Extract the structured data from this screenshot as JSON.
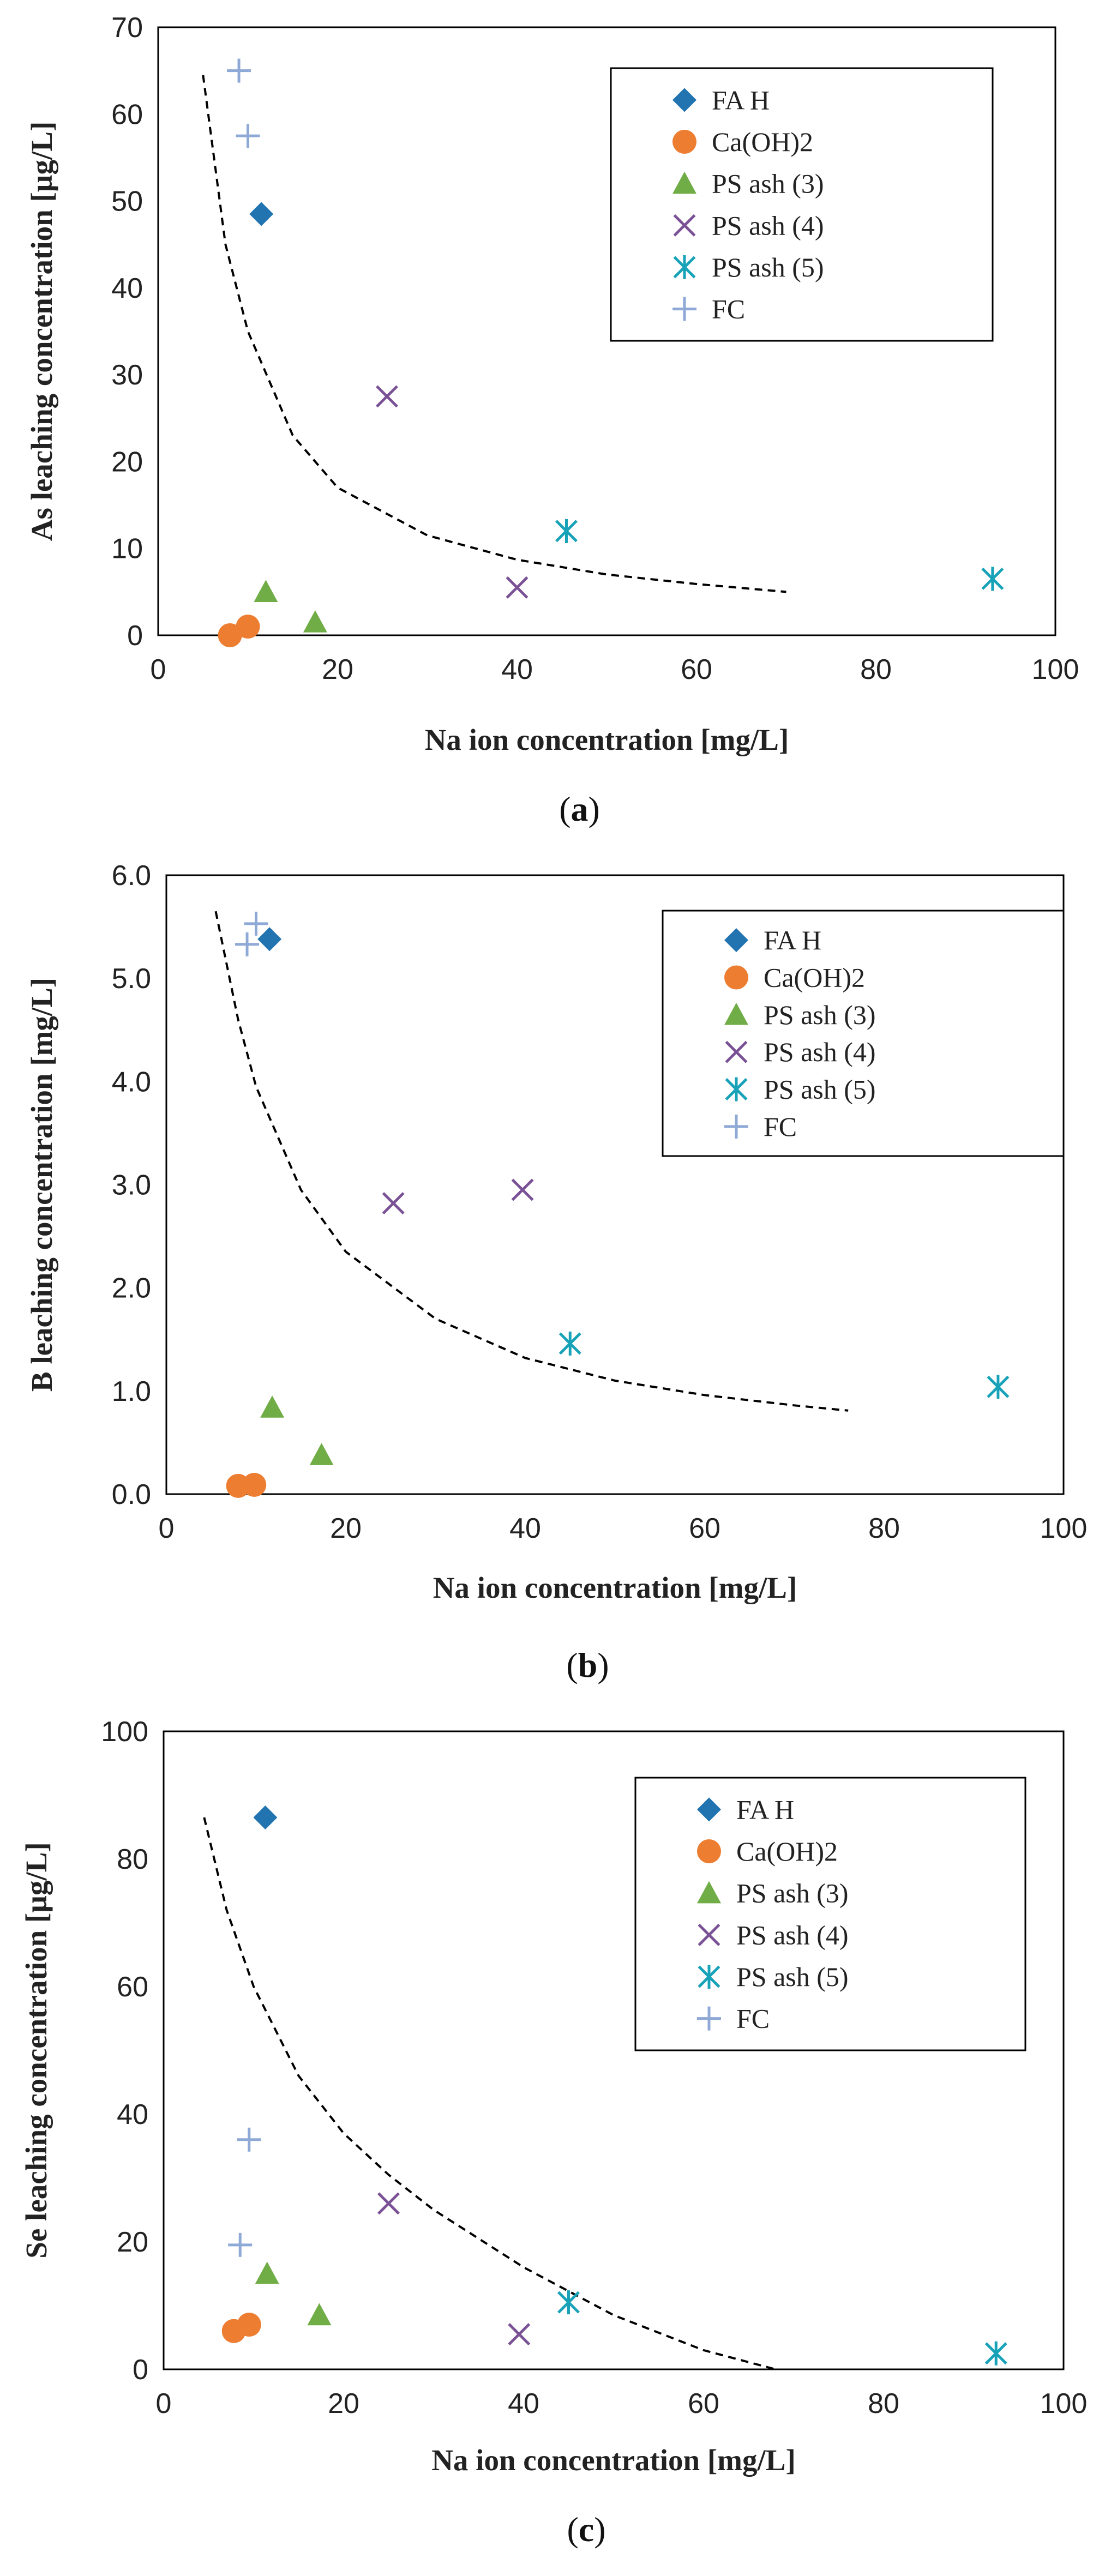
{
  "series_styles": [
    {
      "name": "FA H",
      "marker": "diamond",
      "color": "#2274b0"
    },
    {
      "name": "Ca(OH)2",
      "marker": "circle",
      "color": "#ed7d31"
    },
    {
      "name": "PS ash (3)",
      "marker": "triangle",
      "color": "#70ad47"
    },
    {
      "name": "PS ash (4)",
      "marker": "x",
      "color": "#7a5195"
    },
    {
      "name": "PS ash (5)",
      "marker": "asterisk",
      "color": "#17a2b8"
    },
    {
      "name": "FC",
      "marker": "plus",
      "color": "#8fa9d6"
    }
  ],
  "chart_data": [
    {
      "type": "scatter",
      "caption_open": "(",
      "caption_letter": "a",
      "caption_close": ")",
      "xlabel": "Na ion concentration  [mg/L]",
      "ylabel": "As leaching concentration  [µg/L]",
      "xlim": [
        0,
        100
      ],
      "ylim": [
        0,
        70
      ],
      "xticks": [
        0,
        20,
        40,
        60,
        80,
        100
      ],
      "yticks": [
        0,
        10,
        20,
        30,
        40,
        50,
        60,
        70
      ],
      "ytick_labels": [
        "0",
        "10",
        "20",
        "30",
        "40",
        "50",
        "60",
        "70"
      ],
      "legend_position": "top-right",
      "series": [
        {
          "name": "FA H",
          "points": [
            [
              11.5,
              48.5
            ]
          ]
        },
        {
          "name": "Ca(OH)2",
          "points": [
            [
              8,
              0
            ],
            [
              10,
              1
            ]
          ]
        },
        {
          "name": "PS ash (3)",
          "points": [
            [
              12,
              5
            ],
            [
              17.5,
              1.5
            ]
          ]
        },
        {
          "name": "PS ash (4)",
          "points": [
            [
              25.5,
              27.5
            ],
            [
              40,
              5.5
            ]
          ]
        },
        {
          "name": "PS ash (5)",
          "points": [
            [
              45.5,
              12
            ],
            [
              93,
              6.5
            ]
          ]
        },
        {
          "name": "FC",
          "points": [
            [
              9,
              65
            ],
            [
              10,
              57.5
            ]
          ]
        }
      ],
      "trend": {
        "style": "dashed",
        "points": [
          [
            5,
            64.5
          ],
          [
            7.5,
            45
          ],
          [
            10,
            35
          ],
          [
            15,
            23
          ],
          [
            20,
            17
          ],
          [
            30,
            11.5
          ],
          [
            40,
            8.7
          ],
          [
            50,
            7
          ],
          [
            60,
            5.9
          ],
          [
            70,
            5
          ]
        ]
      }
    },
    {
      "type": "scatter",
      "caption_open": "(",
      "caption_letter": "b",
      "caption_close": ")",
      "xlabel": "Na ion concentration  [mg/L]",
      "ylabel": "B leaching concentration  [mg/L]",
      "xlim": [
        0,
        100
      ],
      "ylim": [
        0,
        6
      ],
      "xticks": [
        0,
        20,
        40,
        60,
        80,
        100
      ],
      "yticks": [
        0,
        1,
        2,
        3,
        4,
        5,
        6
      ],
      "ytick_labels": [
        "0.0",
        "1.0",
        "2.0",
        "3.0",
        "4.0",
        "5.0",
        "6.0"
      ],
      "legend_position": "top-right",
      "series": [
        {
          "name": "FA H",
          "points": [
            [
              11.5,
              5.38
            ]
          ]
        },
        {
          "name": "Ca(OH)2",
          "points": [
            [
              8,
              0.08
            ],
            [
              9.8,
              0.09
            ]
          ]
        },
        {
          "name": "PS ash (3)",
          "points": [
            [
              11.8,
              0.84
            ],
            [
              17.3,
              0.38
            ]
          ]
        },
        {
          "name": "PS ash (4)",
          "points": [
            [
              25.3,
              2.82
            ],
            [
              39.7,
              2.95
            ]
          ]
        },
        {
          "name": "PS ash (5)",
          "points": [
            [
              45,
              1.46
            ],
            [
              92.7,
              1.04
            ]
          ]
        },
        {
          "name": "FC",
          "points": [
            [
              10,
              5.53
            ],
            [
              9,
              5.33
            ]
          ]
        }
      ],
      "trend": {
        "style": "dashed",
        "points": [
          [
            5.5,
            5.65
          ],
          [
            8,
            4.6
          ],
          [
            10,
            3.95
          ],
          [
            15,
            2.95
          ],
          [
            20,
            2.35
          ],
          [
            30,
            1.7
          ],
          [
            40,
            1.32
          ],
          [
            50,
            1.1
          ],
          [
            60,
            0.96
          ],
          [
            70,
            0.86
          ],
          [
            76,
            0.81
          ]
        ]
      }
    },
    {
      "type": "scatter",
      "caption_open": "(",
      "caption_letter": "c",
      "caption_close": ")",
      "xlabel": "Na ion concentration  [mg/L]",
      "ylabel": "Se leaching concentration  [µg/L]",
      "xlim": [
        0,
        100
      ],
      "ylim": [
        0,
        100
      ],
      "xticks": [
        0,
        20,
        40,
        60,
        80,
        100
      ],
      "yticks": [
        0,
        20,
        40,
        60,
        80,
        100
      ],
      "ytick_labels": [
        "0",
        "20",
        "40",
        "60",
        "80",
        "100"
      ],
      "legend_position": "top-right",
      "series": [
        {
          "name": "FA H",
          "points": [
            [
              11.3,
              86.5
            ]
          ]
        },
        {
          "name": "Ca(OH)2",
          "points": [
            [
              7.8,
              6
            ],
            [
              9.5,
              7
            ]
          ]
        },
        {
          "name": "PS ash (3)",
          "points": [
            [
              11.5,
              15
            ],
            [
              17.3,
              8.5
            ]
          ]
        },
        {
          "name": "PS ash (4)",
          "points": [
            [
              25,
              26
            ],
            [
              39.5,
              5.5
            ]
          ]
        },
        {
          "name": "PS ash (5)",
          "points": [
            [
              45,
              10.5
            ],
            [
              92.5,
              2.5
            ]
          ]
        },
        {
          "name": "FC",
          "points": [
            [
              9.5,
              36
            ],
            [
              8.5,
              19.5
            ]
          ]
        }
      ],
      "trend": {
        "style": "dashed",
        "points": [
          [
            4.5,
            86.5
          ],
          [
            7,
            72
          ],
          [
            10,
            60
          ],
          [
            15,
            46
          ],
          [
            20,
            37
          ],
          [
            25,
            30.5
          ],
          [
            30,
            25
          ],
          [
            40,
            16
          ],
          [
            50,
            8.5
          ],
          [
            60,
            3
          ],
          [
            68,
            0
          ]
        ]
      }
    }
  ]
}
